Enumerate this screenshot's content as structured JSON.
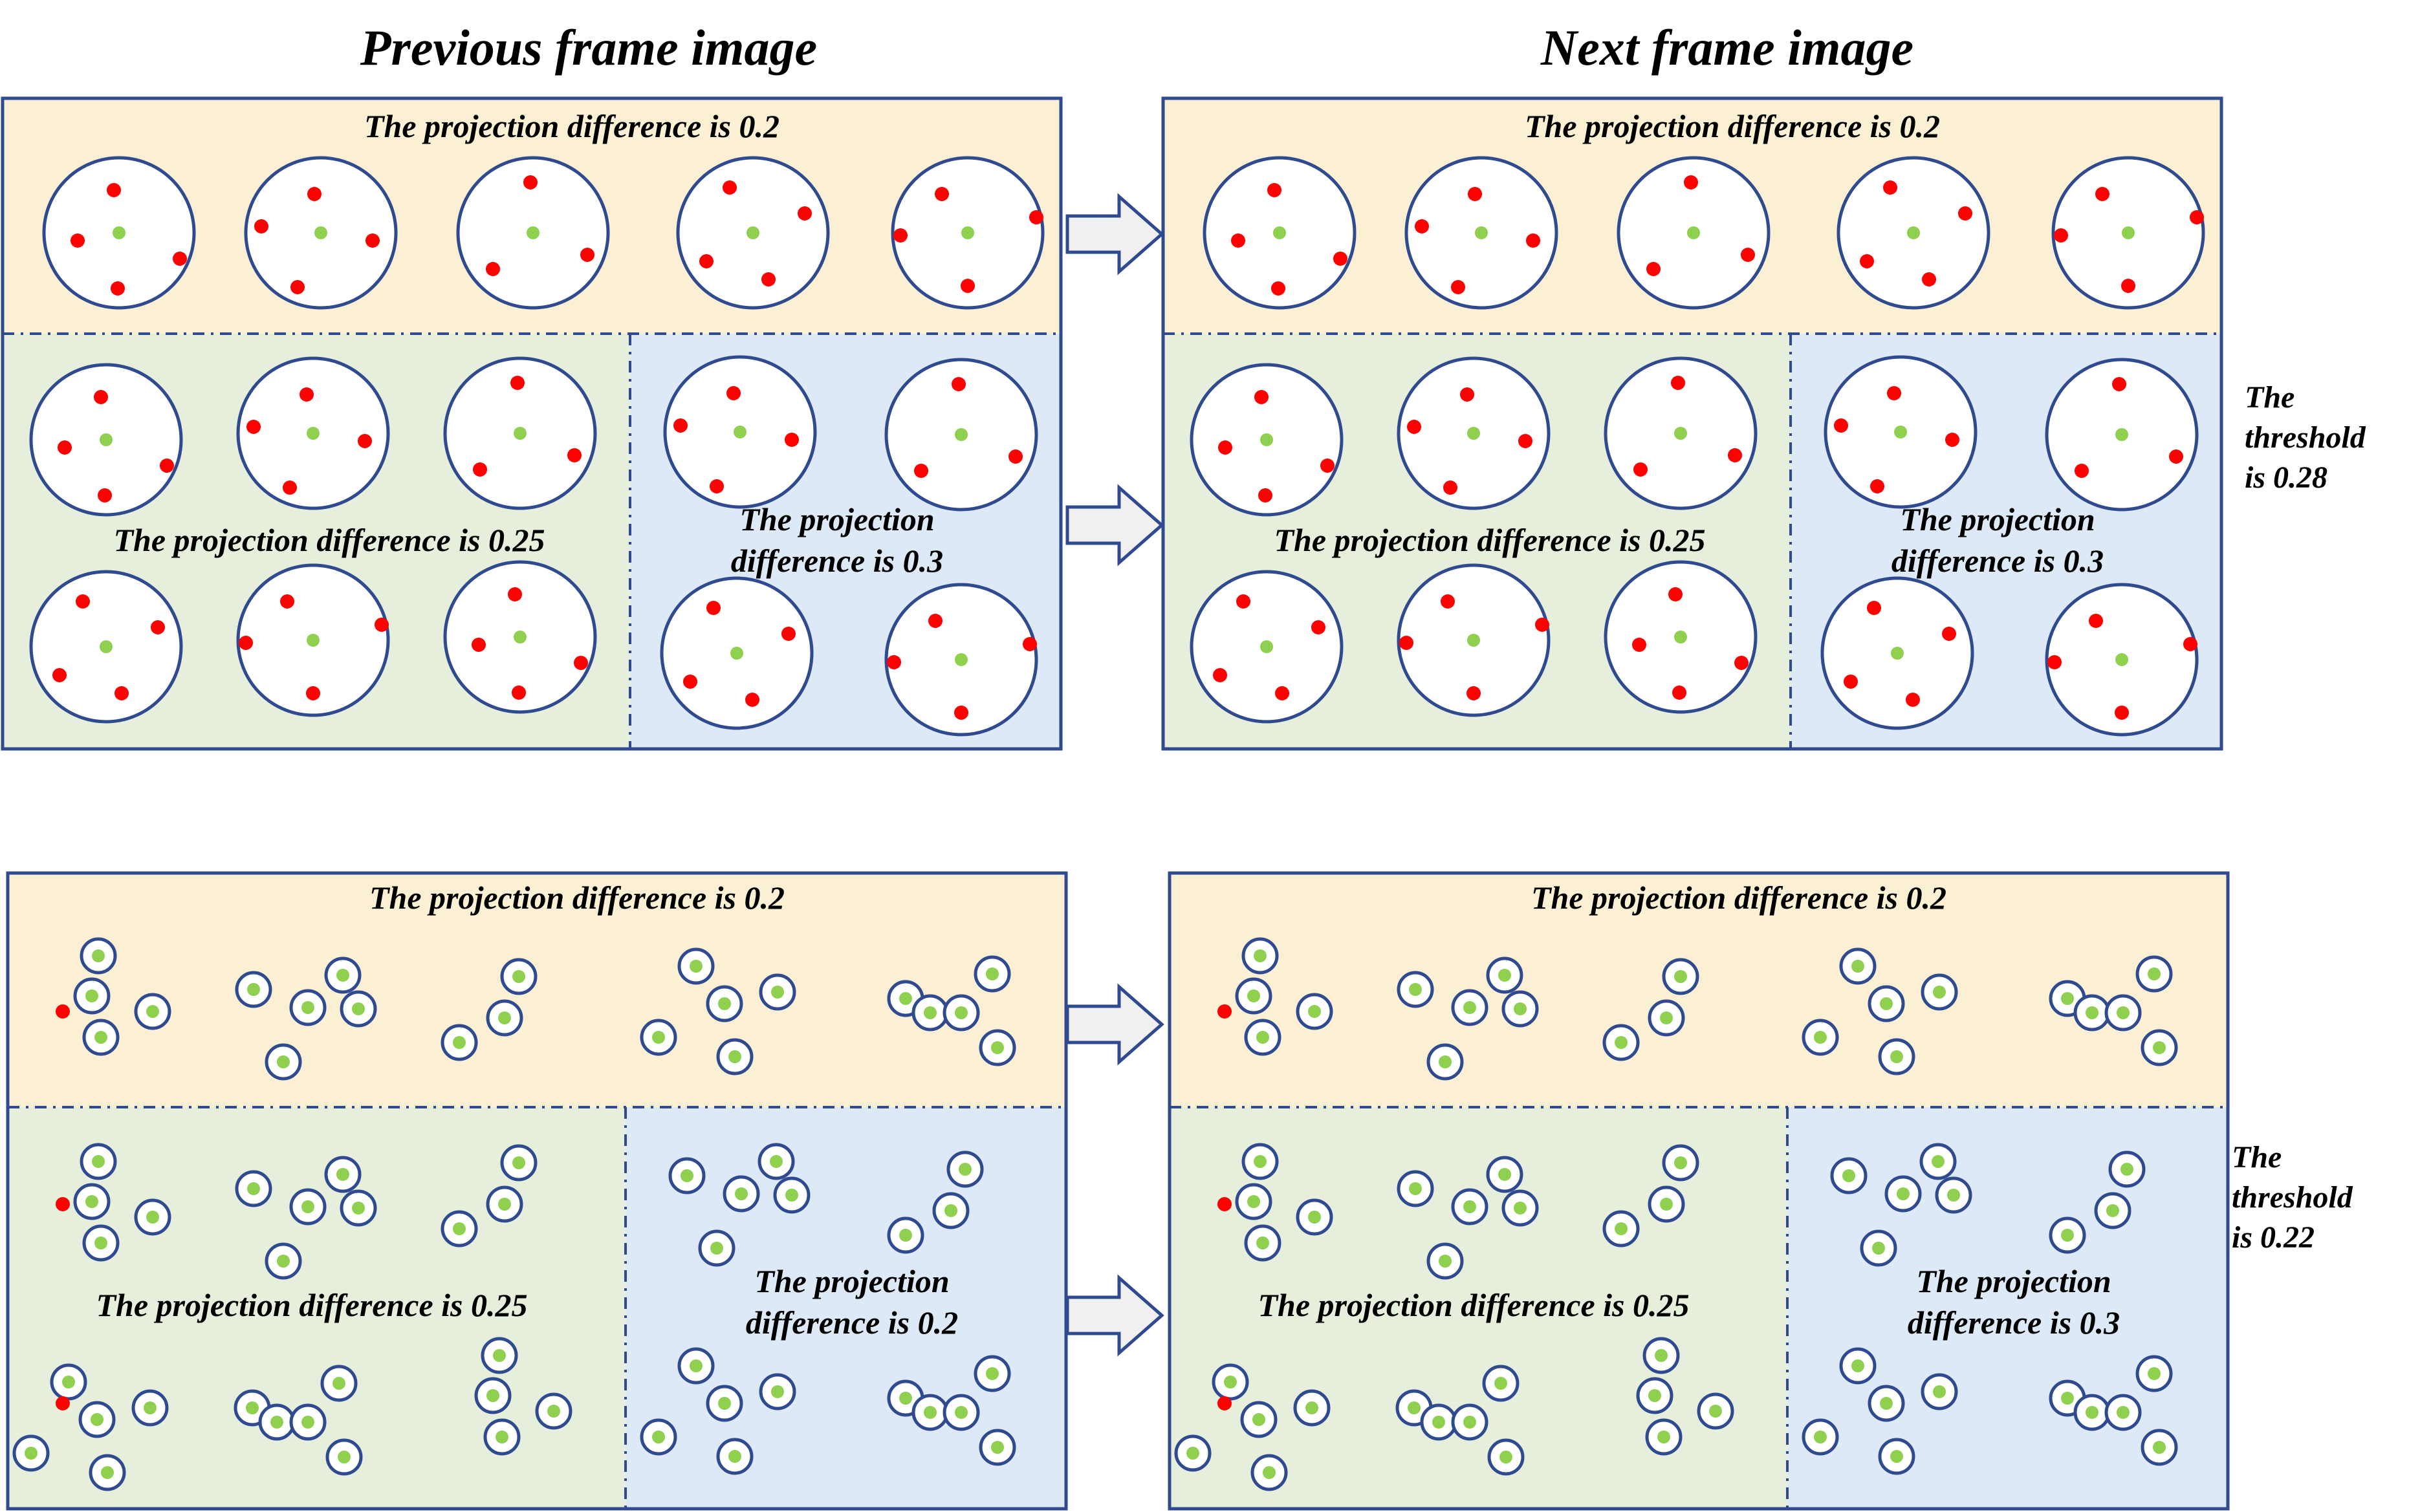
{
  "headings": {
    "previous": "Previous frame image",
    "next": "Next frame image"
  },
  "top_row": {
    "prev": {
      "yellow_label": "The projection difference is 0.2",
      "green_label": "The projection difference is 0.25",
      "blue_label": [
        "The projection",
        "difference is 0.3"
      ]
    },
    "next": {
      "yellow_label": "The projection difference is 0.2",
      "green_label": "The projection difference is 0.25",
      "blue_label": [
        "The projection",
        "difference is 0.3"
      ]
    },
    "threshold": [
      "The",
      "threshold",
      "is 0.28"
    ]
  },
  "bottom_row": {
    "prev": {
      "yellow_label": "The projection difference is 0.2",
      "green_label": "The projection difference is 0.25",
      "blue_label": [
        "The projection",
        "difference is 0.2"
      ]
    },
    "next": {
      "yellow_label": "The projection difference is 0.2",
      "green_label": "The projection difference is 0.25",
      "blue_label": [
        "The projection",
        "difference is 0.3"
      ]
    },
    "threshold": [
      "The",
      "threshold",
      "is 0.22"
    ]
  },
  "colors": {
    "yellow_region": "#fcf0d4",
    "green_region": "#e6efdc",
    "blue_region": "#dde9f6",
    "border": "#2f4a8f",
    "red_point": "#ff0000",
    "green_point": "#8fd14f",
    "arrow_fill": "#f0f0f0",
    "arrow_stroke": "#2f4a8f"
  }
}
